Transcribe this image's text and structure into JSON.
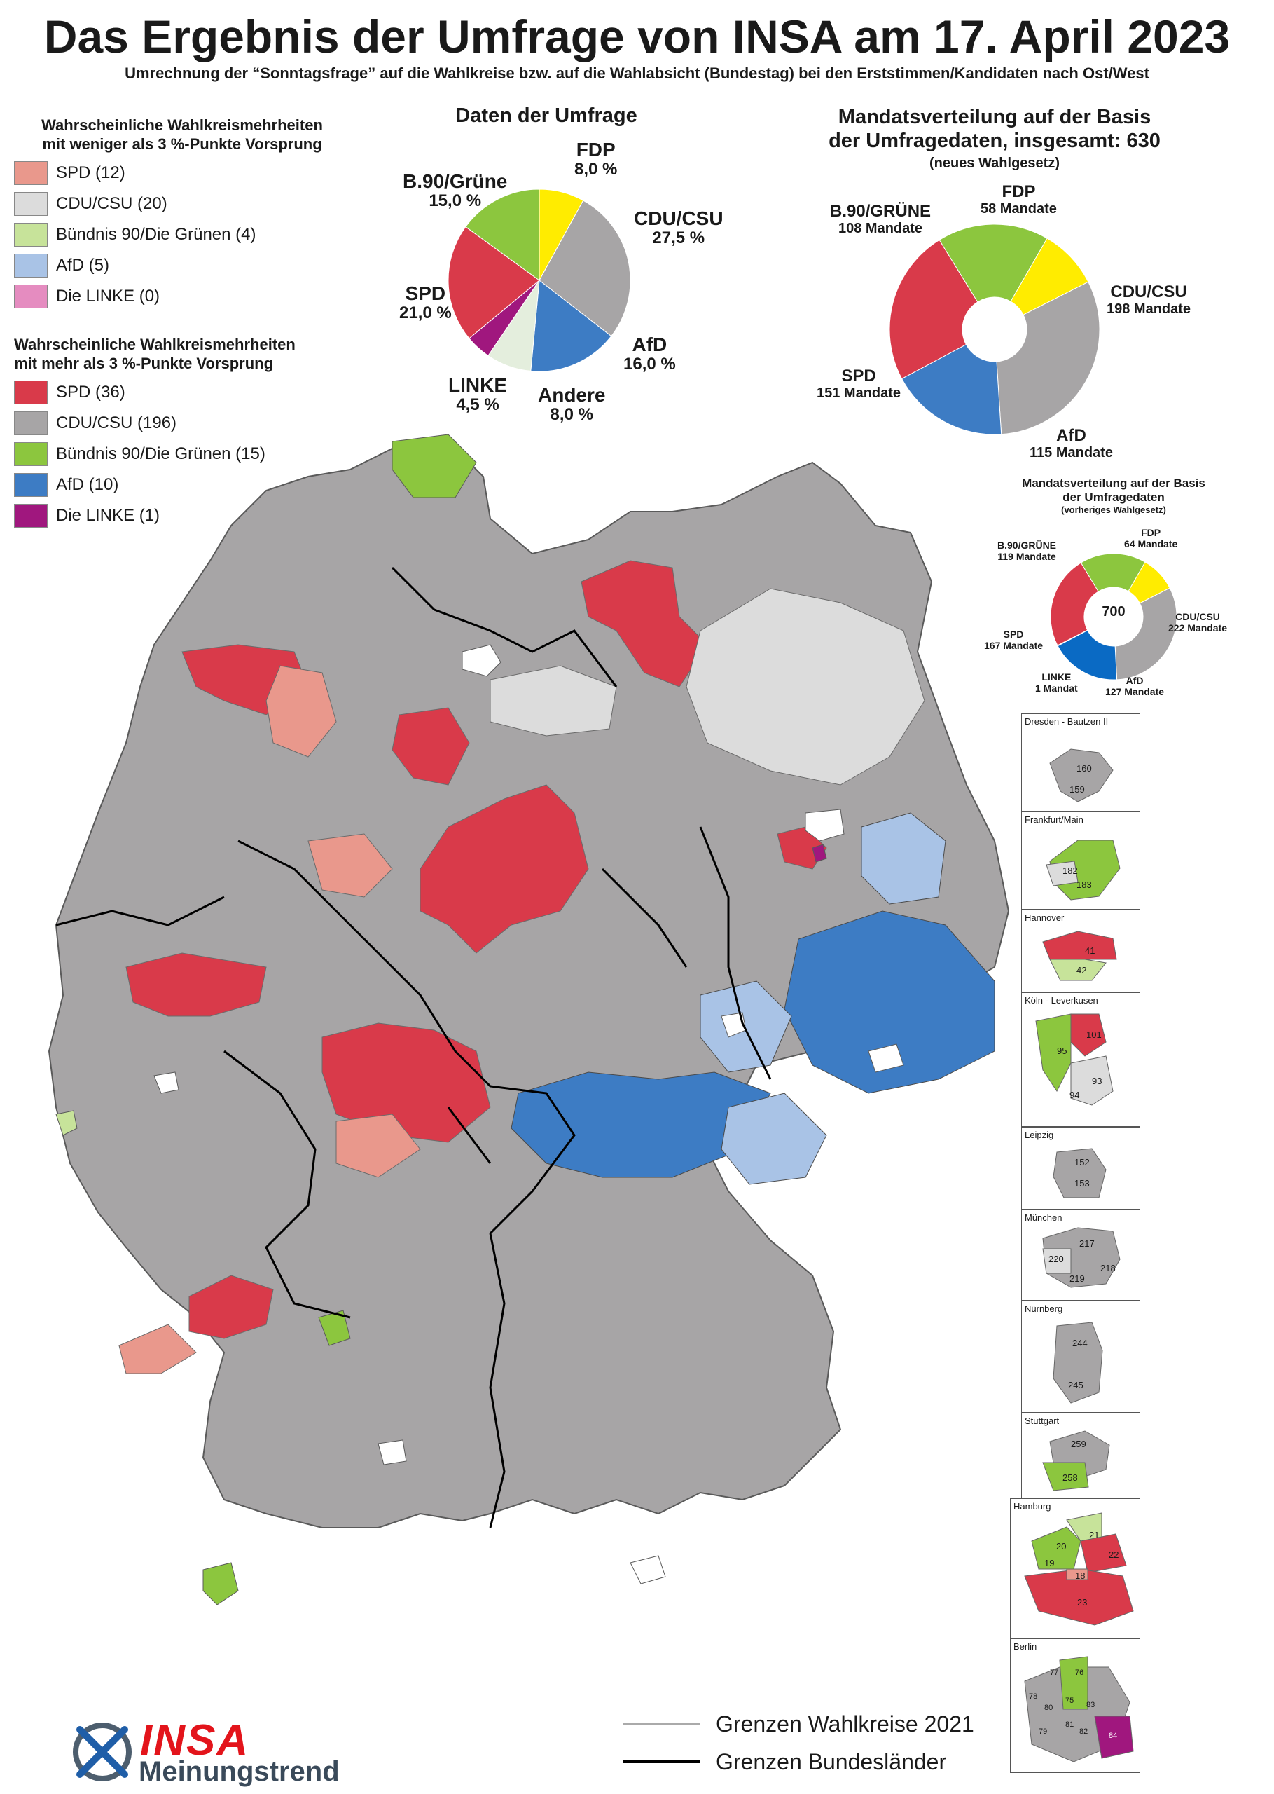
{
  "header": {
    "title": "Das Ergebnis der Umfrage von INSA am 17. April 2023",
    "subtitle": "Umrechnung der “Sonntagsfrage” auf die Wahlkreise bzw. auf die Wahlabsicht (Bundestag) bei den Erststimmen/Kandidaten nach Ost/West"
  },
  "legend_small_margin": {
    "heading_line1": "Wahrscheinliche Wahlkreismehrheiten",
    "heading_line2": "mit weniger als 3 %-Punkte Vorsprung",
    "items": [
      {
        "label": "SPD (12)",
        "color": "#e9988c"
      },
      {
        "label": "CDU/CSU (20)",
        "color": "#dcdcdc"
      },
      {
        "label": "Bündnis 90/Die Grünen (4)",
        "color": "#c7e39a"
      },
      {
        "label": "AfD (5)",
        "color": "#a9c3e6"
      },
      {
        "label": "Die LINKE (0)",
        "color": "#e58cc0"
      }
    ]
  },
  "legend_large_margin": {
    "heading_line1": "Wahrscheinliche Wahlkreismehrheiten",
    "heading_line2": "mit mehr als 3 %-Punkte Vorsprung",
    "items": [
      {
        "label": "SPD (36)",
        "color": "#d93a4a"
      },
      {
        "label": "CDU/CSU (196)",
        "color": "#a7a5a6"
      },
      {
        "label": "Bündnis 90/Die Grünen (15)",
        "color": "#8cc63e"
      },
      {
        "label": "AfD (10)",
        "color": "#3d7cc4"
      },
      {
        "label": "Die LINKE (1)",
        "color": "#a0177e"
      }
    ]
  },
  "poll_chart": {
    "title": "Daten der Umfrage",
    "labels": [
      {
        "party": "FDP",
        "value": "8,0 %"
      },
      {
        "party": "CDU/CSU",
        "value": "27,5 %"
      },
      {
        "party": "AfD",
        "value": "16,0 %"
      },
      {
        "party": "Andere",
        "value": "8,0 %"
      },
      {
        "party": "LINKE",
        "value": "4,5 %"
      },
      {
        "party": "SPD",
        "value": "21,0 %"
      },
      {
        "party": "B.90/Grüne",
        "value": "15,0 %"
      }
    ]
  },
  "seat_chart_new": {
    "title_line1": "Mandatsverteilung auf der Basis",
    "title_line2": "der Umfragedaten, insgesamt: 630",
    "subtitle": "(neues Wahlgesetz)",
    "labels": [
      {
        "party": "FDP",
        "value": "58 Mandate"
      },
      {
        "party": "CDU/CSU",
        "value": "198 Mandate"
      },
      {
        "party": "AfD",
        "value": "115 Mandate"
      },
      {
        "party": "SPD",
        "value": "151 Mandate"
      },
      {
        "party": "B.90/GRÜNE",
        "value": "108 Mandate"
      }
    ]
  },
  "seat_chart_old": {
    "title_line1": "Mandatsverteilung auf der Basis",
    "title_line2": "der Umfragedaten",
    "subtitle": "(vorheriges Wahlgesetz)",
    "total": "700",
    "labels": [
      {
        "party": "FDP",
        "value": "64 Mandate"
      },
      {
        "party": "CDU/CSU",
        "value": "222 Mandate"
      },
      {
        "party": "AfD",
        "value": "127 Mandate"
      },
      {
        "party": "LINKE",
        "value": "1 Mandat"
      },
      {
        "party": "SPD",
        "value": "167 Mandate"
      },
      {
        "party": "B.90/GRÜNE",
        "value": "119 Mandate"
      }
    ]
  },
  "chart_data": [
    {
      "type": "pie",
      "title": "Daten der Umfrage",
      "categories": [
        "FDP",
        "CDU/CSU",
        "AfD",
        "Andere",
        "LINKE",
        "SPD",
        "B.90/Grüne"
      ],
      "values": [
        8.0,
        27.5,
        16.0,
        8.0,
        4.5,
        21.0,
        15.0
      ],
      "colors": [
        "#ffec00",
        "#a7a5a6",
        "#3d7cc4",
        "#e4eedd",
        "#a0177e",
        "#d93a4a",
        "#8cc63e"
      ]
    },
    {
      "type": "pie",
      "title": "Mandatsverteilung auf der Basis der Umfragedaten, insgesamt: 630",
      "categories": [
        "FDP",
        "CDU/CSU",
        "AfD",
        "SPD",
        "B.90/GRÜNE"
      ],
      "values": [
        58,
        198,
        115,
        151,
        108
      ],
      "colors": [
        "#ffec00",
        "#a7a5a6",
        "#3d7cc4",
        "#d93a4a",
        "#8cc63e"
      ]
    },
    {
      "type": "pie",
      "title": "Mandatsverteilung auf der Basis der Umfragedaten",
      "categories": [
        "FDP",
        "CDU/CSU",
        "AfD",
        "LINKE",
        "SPD",
        "B.90/GRÜNE"
      ],
      "values": [
        64,
        222,
        127,
        1,
        167,
        119
      ],
      "colors": [
        "#ffec00",
        "#a7a5a6",
        "#0a6ac4",
        "#a0177e",
        "#d93a4a",
        "#8cc63e"
      ]
    }
  ],
  "insets": [
    {
      "title": "Dresden - Bautzen II",
      "numbers": [
        "160",
        "159"
      ]
    },
    {
      "title": "Frankfurt/Main",
      "numbers": [
        "182",
        "183"
      ]
    },
    {
      "title": "Hannover",
      "numbers": [
        "41",
        "42"
      ]
    },
    {
      "title": "Köln - Leverkusen",
      "numbers": [
        "101",
        "95",
        "93",
        "94"
      ]
    },
    {
      "title": "Leipzig",
      "numbers": [
        "152",
        "153"
      ]
    },
    {
      "title": "München",
      "numbers": [
        "217",
        "220",
        "218",
        "219"
      ]
    },
    {
      "title": "Nürnberg",
      "numbers": [
        "244",
        "245"
      ]
    },
    {
      "title": "Stuttgart",
      "numbers": [
        "259",
        "258"
      ]
    },
    {
      "title": "Hamburg",
      "numbers": [
        "21",
        "20",
        "22",
        "19",
        "18",
        "23"
      ]
    },
    {
      "title": "Berlin",
      "numbers": [
        "77",
        "76",
        "78",
        "80",
        "75",
        "83",
        "79",
        "81",
        "82",
        "84"
      ]
    }
  ],
  "map_legend": {
    "districts": "Grenzen Wahlkreise 2021",
    "states": "Grenzen Bundesländer"
  },
  "logo": {
    "brand": "INSA",
    "sub": "Meinungstrend"
  },
  "colors": {
    "spd_strong": "#d93a4a",
    "spd_weak": "#e9988c",
    "cdu_strong": "#a7a5a6",
    "cdu_weak": "#dcdcdc",
    "green_strong": "#8cc63e",
    "green_weak": "#c7e39a",
    "afd_strong": "#3d7cc4",
    "afd_weak": "#a9c3e6",
    "linke_strong": "#a0177e",
    "fdp": "#ffec00"
  }
}
